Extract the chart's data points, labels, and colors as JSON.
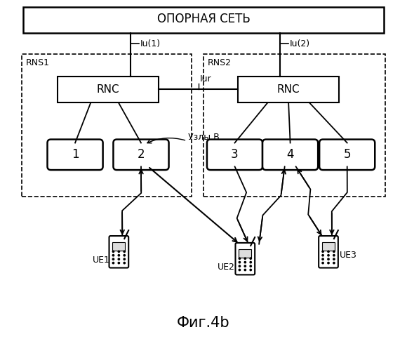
{
  "title": "ОПОРНАЯ СЕТЬ",
  "fig_label": "Фиг.4b",
  "background": "#ffffff",
  "line_color": "#000000",
  "rns1_label": "RNS1",
  "rns2_label": "RNS2",
  "rnc_label": "RNC",
  "iur_label": "Iur",
  "iu1_label": "Iu(1)",
  "iu2_label": "Iu(2)",
  "uzly_label": "Узлы B",
  "node_labels": [
    "1",
    "2",
    "3",
    "4",
    "5"
  ],
  "ue_labels": [
    "UE1",
    "UE2",
    "UE3"
  ]
}
